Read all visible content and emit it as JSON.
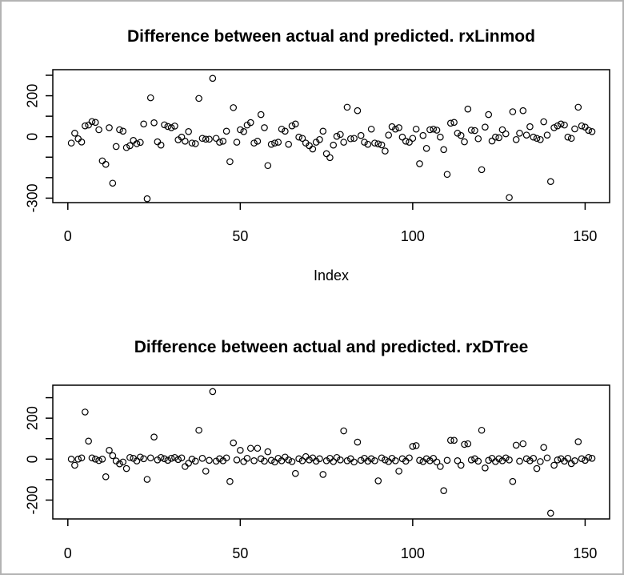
{
  "window": {
    "background": "#ffffff",
    "border_color": "#b3b3b3",
    "axis_color": "#000000",
    "point_color": "#000000"
  },
  "chart_data": [
    {
      "type": "scatter",
      "title": "Difference between actual and predicted. rxLinmod",
      "xlabel": "Index",
      "ylabel": "",
      "xlim": [
        0,
        152
      ],
      "ylim": [
        -320,
        325
      ],
      "grid": false,
      "x_ticks": [
        0,
        50,
        100,
        150
      ],
      "x_tick_labels": [
        "0",
        "50",
        "100",
        "150"
      ],
      "y_ticks": [
        300,
        200,
        100,
        0,
        -100,
        -200,
        -300
      ],
      "y_tick_labels": [
        "",
        "200",
        "",
        "0",
        "",
        "",
        "-300"
      ],
      "marker": "open-circle",
      "x_start": 1,
      "x_step": 1,
      "n": 152,
      "y": [
        -31,
        17,
        -10,
        -26,
        53,
        57,
        74,
        70,
        34,
        -118,
        -135,
        44,
        -227,
        -48,
        34,
        27,
        -53,
        -44,
        -18,
        -34,
        -28,
        62,
        -303,
        190,
        68,
        -25,
        -41,
        58,
        50,
        44,
        52,
        -15,
        -2,
        -22,
        25,
        -31,
        -34,
        187,
        -8,
        -12,
        -12,
        285,
        -8,
        -27,
        -22,
        27,
        -122,
        142,
        -27,
        34,
        25,
        57,
        69,
        -31,
        -22,
        108,
        44,
        -141,
        -37,
        -31,
        -27,
        37,
        27,
        -37,
        53,
        62,
        -2,
        -8,
        -31,
        -44,
        -60,
        -27,
        -14,
        27,
        -83,
        -102,
        -41,
        2,
        11,
        -27,
        144,
        -10,
        -8,
        127,
        6,
        -27,
        -37,
        37,
        -31,
        -35,
        -40,
        -70,
        8,
        49,
        37,
        44,
        -2,
        -22,
        -27,
        -8,
        37,
        -132,
        6,
        -57,
        34,
        37,
        32,
        -2,
        -63,
        -184,
        66,
        70,
        17,
        6,
        -25,
        135,
        32,
        30,
        -10,
        -161,
        47,
        108,
        -21,
        -2,
        -5,
        34,
        14,
        -297,
        122,
        -14,
        17,
        127,
        8,
        49,
        -2,
        -8,
        -14,
        73,
        8,
        -219,
        44,
        53,
        62,
        57,
        -2,
        -8,
        38,
        144,
        53,
        47,
        31,
        25
      ]
    },
    {
      "type": "scatter",
      "title": "Difference between actual and predicted. rxDTree",
      "xlabel": "",
      "ylabel": "",
      "xlim": [
        0,
        152
      ],
      "ylim": [
        -290,
        360
      ],
      "grid": false,
      "x_ticks": [
        0,
        50,
        100,
        150
      ],
      "x_tick_labels": [
        "0",
        "50",
        "100",
        "150"
      ],
      "y_ticks": [
        300,
        200,
        100,
        0,
        -100,
        -200
      ],
      "y_tick_labels": [
        "",
        "200",
        "",
        "0",
        "",
        "-200"
      ],
      "marker": "open-circle",
      "x_start": 1,
      "x_step": 1,
      "n": 152,
      "y": [
        0,
        -30,
        0,
        6,
        230,
        88,
        6,
        0,
        -7,
        0,
        -86,
        43,
        17,
        -9,
        -23,
        -14,
        -46,
        8,
        4,
        -9,
        10,
        2,
        -99,
        6,
        108,
        -4,
        8,
        2,
        -6,
        4,
        8,
        -2,
        6,
        -36,
        -20,
        0,
        -10,
        141,
        4,
        -59,
        -6,
        330,
        -10,
        2,
        -8,
        6,
        -109,
        79,
        -4,
        43,
        -12,
        4,
        53,
        -8,
        53,
        2,
        -10,
        36,
        -6,
        -14,
        4,
        -8,
        10,
        -4,
        -12,
        -70,
        2,
        -8,
        12,
        -4,
        6,
        -10,
        2,
        -75,
        -8,
        4,
        -12,
        8,
        -4,
        138,
        -8,
        2,
        -14,
        83,
        -6,
        4,
        -10,
        2,
        -8,
        -106,
        6,
        -4,
        -12,
        4,
        -8,
        -59,
        2,
        -10,
        6,
        62,
        66,
        -6,
        -12,
        2,
        -8,
        4,
        -14,
        -36,
        -154,
        -6,
        92,
        92,
        -8,
        -30,
        72,
        75,
        -4,
        2,
        -10,
        141,
        -43,
        -6,
        4,
        -12,
        2,
        -8,
        6,
        -4,
        -109,
        68,
        -10,
        75,
        2,
        -8,
        4,
        -46,
        -12,
        57,
        6,
        -264,
        -30,
        -4,
        2,
        -10,
        4,
        -22,
        -8,
        85,
        2,
        -6,
        8,
        4
      ]
    }
  ]
}
